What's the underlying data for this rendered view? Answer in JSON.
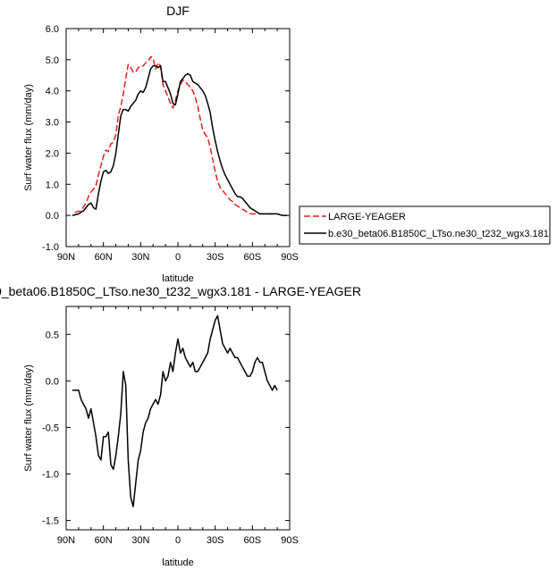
{
  "chart_data": [
    {
      "type": "line",
      "title": "DJF",
      "xlabel": "latitude",
      "ylabel": "Surf water flux (mm/day)",
      "xlim": [
        90,
        -90
      ],
      "ylim": [
        -1.0,
        6.0
      ],
      "xticks": [
        90,
        60,
        30,
        0,
        -30,
        -60,
        -90
      ],
      "xtick_labels": [
        "90N",
        "60N",
        "30N",
        "0",
        "30S",
        "60S",
        "90S"
      ],
      "yticks": [
        -1.0,
        0.0,
        1.0,
        2.0,
        3.0,
        4.0,
        5.0,
        6.0
      ],
      "ytick_labels": [
        "-1.0",
        "0.0",
        "1.0",
        "2.0",
        "3.0",
        "4.0",
        "5.0",
        "6.0"
      ],
      "legend": "right",
      "series": [
        {
          "name": "LARGE-YEAGER",
          "color": "#e8211a",
          "dash": "dashed",
          "x": [
            83,
            78,
            74,
            71,
            68,
            66,
            64,
            62,
            60,
            58,
            56,
            54,
            52,
            50,
            48,
            46,
            44,
            42,
            40,
            38,
            36,
            34,
            32,
            30,
            28,
            26,
            24,
            22,
            20,
            18,
            16,
            14,
            12,
            10,
            8,
            6,
            4,
            2,
            0,
            -2,
            -4,
            -6,
            -8,
            -10,
            -12,
            -14,
            -16,
            -18,
            -20,
            -22,
            -24,
            -26,
            -28,
            -30,
            -32,
            -34,
            -36,
            -38,
            -40,
            -42,
            -44,
            -46,
            -48,
            -50,
            -52,
            -54,
            -56,
            -58,
            -60,
            -62,
            -64,
            -66,
            -68,
            -70,
            -72,
            -74,
            -76,
            -78,
            -80
          ],
          "y": [
            0.1,
            0.15,
            0.4,
            0.7,
            0.85,
            0.95,
            1.3,
            1.6,
            1.9,
            2.1,
            2.05,
            2.3,
            2.35,
            2.6,
            3.2,
            3.5,
            3.9,
            4.4,
            4.85,
            4.75,
            4.6,
            4.6,
            4.75,
            4.8,
            4.8,
            4.9,
            4.95,
            5.1,
            5.05,
            4.7,
            4.9,
            4.8,
            4.2,
            4.0,
            3.8,
            3.6,
            3.45,
            3.7,
            4.0,
            4.2,
            4.35,
            4.3,
            4.2,
            4.1,
            4.0,
            3.8,
            3.5,
            3.1,
            2.75,
            2.6,
            2.5,
            2.2,
            1.8,
            1.4,
            1.1,
            0.9,
            0.8,
            0.7,
            0.6,
            0.5,
            0.45,
            0.35,
            0.3,
            0.25,
            0.2,
            0.15,
            0.1,
            0.05,
            0.05,
            0.05,
            0.05,
            0.05,
            0.05,
            0.05,
            0.05,
            0.05,
            0.05,
            0.05,
            0.05
          ]
        },
        {
          "name": "b.e30_beta06.B1850C_LTso.ne30_t232_wgx3.181",
          "color": "#000000",
          "dash": "solid",
          "x": [
            85,
            80,
            76,
            72,
            70,
            68,
            66,
            64,
            62,
            60,
            58,
            56,
            54,
            52,
            50,
            48,
            46,
            44,
            42,
            40,
            38,
            36,
            34,
            32,
            30,
            28,
            26,
            24,
            22,
            20,
            18,
            16,
            14,
            12,
            10,
            8,
            6,
            4,
            2,
            0,
            -2,
            -4,
            -6,
            -8,
            -10,
            -12,
            -14,
            -16,
            -18,
            -20,
            -22,
            -24,
            -26,
            -28,
            -30,
            -32,
            -34,
            -36,
            -38,
            -40,
            -42,
            -44,
            -46,
            -48,
            -50,
            -52,
            -54,
            -56,
            -58,
            -60,
            -62,
            -64,
            -66,
            -68,
            -70,
            -72,
            -74,
            -76,
            -78,
            -80,
            -84,
            -88
          ],
          "y": [
            0.0,
            0.05,
            0.15,
            0.35,
            0.4,
            0.25,
            0.2,
            0.7,
            1.1,
            1.4,
            1.45,
            1.35,
            1.4,
            1.6,
            2.0,
            2.6,
            3.2,
            3.4,
            3.4,
            3.35,
            3.5,
            3.6,
            3.7,
            3.9,
            4.0,
            3.95,
            4.1,
            4.4,
            4.7,
            4.8,
            4.8,
            4.75,
            4.8,
            4.3,
            4.3,
            4.1,
            3.9,
            3.6,
            3.55,
            3.9,
            4.3,
            4.4,
            4.5,
            4.55,
            4.5,
            4.3,
            4.25,
            4.2,
            4.1,
            4.0,
            3.85,
            3.6,
            3.3,
            2.8,
            2.4,
            2.05,
            1.75,
            1.5,
            1.3,
            1.15,
            1.0,
            0.85,
            0.7,
            0.6,
            0.6,
            0.55,
            0.45,
            0.35,
            0.25,
            0.2,
            0.15,
            0.1,
            0.05,
            0.05,
            0.05,
            0.05,
            0.05,
            0.05,
            0.05,
            0.05,
            0.0,
            0.0
          ]
        }
      ]
    },
    {
      "type": "line",
      "title": "0_beta06.B1850C_LTso.ne30_t232_wgx3.181 - LARGE-YEAGER",
      "xlabel": "latitude",
      "ylabel": "Surf water flux (mm/day)",
      "xlim": [
        90,
        -90
      ],
      "ylim": [
        -1.6,
        0.8
      ],
      "xticks": [
        90,
        60,
        30,
        0,
        -30,
        -60,
        -90
      ],
      "xtick_labels": [
        "90N",
        "60N",
        "30N",
        "0",
        "30S",
        "60S",
        "90S"
      ],
      "yticks": [
        -1.5,
        -1.0,
        -0.5,
        0.0,
        0.5
      ],
      "ytick_labels": [
        "-1.5",
        "-1.0",
        "-0.5",
        "0.0",
        "0.5"
      ],
      "series": [
        {
          "name": "",
          "color": "#000000",
          "dash": "solid",
          "x": [
            85,
            80,
            78,
            76,
            74,
            72,
            70,
            68,
            66,
            64,
            62,
            60,
            58,
            56,
            54,
            52,
            50,
            48,
            46,
            44,
            42,
            40,
            38,
            36,
            34,
            32,
            30,
            28,
            26,
            24,
            22,
            20,
            18,
            16,
            14,
            12,
            10,
            8,
            6,
            4,
            2,
            0,
            -2,
            -4,
            -6,
            -8,
            -10,
            -12,
            -14,
            -16,
            -18,
            -20,
            -22,
            -24,
            -26,
            -28,
            -30,
            -32,
            -34,
            -36,
            -38,
            -40,
            -42,
            -44,
            -46,
            -48,
            -50,
            -52,
            -54,
            -56,
            -58,
            -60,
            -62,
            -64,
            -66,
            -68,
            -70,
            -72,
            -74,
            -76,
            -78,
            -80
          ],
          "y": [
            -0.1,
            -0.1,
            -0.2,
            -0.25,
            -0.3,
            -0.4,
            -0.3,
            -0.45,
            -0.6,
            -0.8,
            -0.85,
            -0.6,
            -0.6,
            -0.55,
            -0.9,
            -0.95,
            -0.8,
            -0.6,
            -0.35,
            0.1,
            -0.05,
            -0.85,
            -1.25,
            -1.35,
            -1.1,
            -0.85,
            -0.75,
            -0.55,
            -0.45,
            -0.4,
            -0.3,
            -0.25,
            -0.2,
            -0.25,
            -0.15,
            0.1,
            0.0,
            0.05,
            0.2,
            0.1,
            0.3,
            0.45,
            0.3,
            0.35,
            0.25,
            0.2,
            0.15,
            0.2,
            0.1,
            0.1,
            0.15,
            0.2,
            0.25,
            0.3,
            0.45,
            0.55,
            0.65,
            0.7,
            0.55,
            0.4,
            0.35,
            0.3,
            0.35,
            0.3,
            0.25,
            0.25,
            0.2,
            0.15,
            0.1,
            0.05,
            0.05,
            0.1,
            0.2,
            0.25,
            0.2,
            0.2,
            0.1,
            0.0,
            -0.05,
            -0.1,
            -0.05,
            -0.1
          ]
        }
      ]
    }
  ]
}
